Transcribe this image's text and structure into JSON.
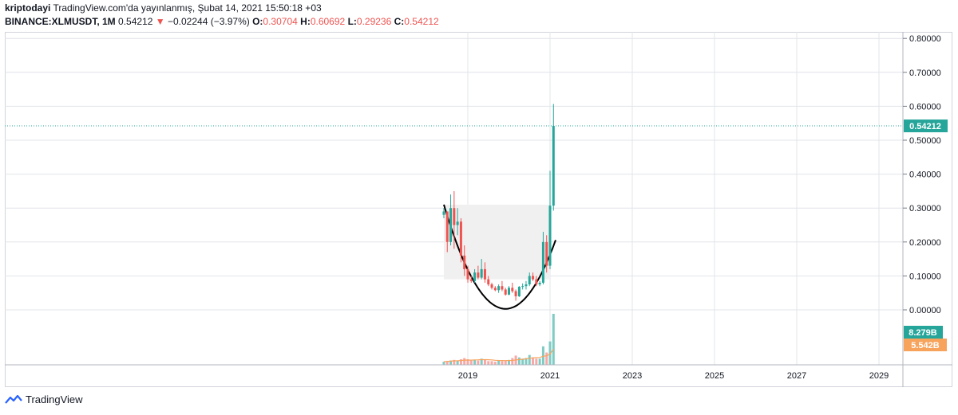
{
  "header": {
    "author": "kriptodayi",
    "published": "TradingView.com'da yayınlanmış, Şubat 14, 2021 15:50:18 +03",
    "symbol": "BINANCE:XLMUSDT, 1M",
    "last": "0.54212",
    "change": "−0.02244 (−3.97%)",
    "o_label": "O:",
    "o_value": "0.30704",
    "h_label": "H:",
    "h_value": "0.60692",
    "l_label": "L:",
    "l_value": "0.29236",
    "c_label": "C:",
    "c_value": "0.54212"
  },
  "price_axis": {
    "ticks": [
      "0.80000",
      "0.70000",
      "0.60000",
      "0.50000",
      "0.40000",
      "0.30000",
      "0.20000",
      "0.10000",
      "0.00000"
    ],
    "current_price_label": "0.54212",
    "volume_label": "8.279B",
    "volume_ma_label": "5.542B"
  },
  "time_axis": {
    "ticks": [
      "2019",
      "2021",
      "2023",
      "2025",
      "2027",
      "2029"
    ]
  },
  "footer": {
    "brand": "TradingView"
  },
  "colors": {
    "up": "#26a69a",
    "down": "#ef5350",
    "grid": "#e1e4e9",
    "last_price": "#26a69a",
    "volume_ma": "#f7a35c",
    "pattern_fill": "#f0f0f0"
  },
  "chart_data": {
    "type": "candlestick",
    "symbol": "BINANCE:XLMUSDT",
    "interval": "1M",
    "ylim": [
      0,
      0.8
    ],
    "xlim": [
      "2017-06",
      "2029-06"
    ],
    "last_price": 0.54212,
    "candles": [
      {
        "date": "2018-06",
        "o": 0.28,
        "h": 0.3,
        "l": 0.27,
        "c": 0.29
      },
      {
        "date": "2018-07",
        "o": 0.29,
        "h": 0.29,
        "l": 0.17,
        "c": 0.2
      },
      {
        "date": "2018-08",
        "o": 0.2,
        "h": 0.34,
        "l": 0.19,
        "c": 0.3
      },
      {
        "date": "2018-09",
        "o": 0.3,
        "h": 0.35,
        "l": 0.18,
        "c": 0.25
      },
      {
        "date": "2018-10",
        "o": 0.25,
        "h": 0.3,
        "l": 0.22,
        "c": 0.26
      },
      {
        "date": "2018-11",
        "o": 0.26,
        "h": 0.27,
        "l": 0.14,
        "c": 0.16
      },
      {
        "date": "2018-12",
        "o": 0.16,
        "h": 0.19,
        "l": 0.1,
        "c": 0.12
      },
      {
        "date": "2019-01",
        "o": 0.12,
        "h": 0.13,
        "l": 0.08,
        "c": 0.09
      },
      {
        "date": "2019-02",
        "o": 0.09,
        "h": 0.1,
        "l": 0.08,
        "c": 0.085
      },
      {
        "date": "2019-03",
        "o": 0.085,
        "h": 0.12,
        "l": 0.08,
        "c": 0.11
      },
      {
        "date": "2019-04",
        "o": 0.11,
        "h": 0.13,
        "l": 0.09,
        "c": 0.095
      },
      {
        "date": "2019-05",
        "o": 0.095,
        "h": 0.15,
        "l": 0.09,
        "c": 0.12
      },
      {
        "date": "2019-06",
        "o": 0.12,
        "h": 0.14,
        "l": 0.08,
        "c": 0.09
      },
      {
        "date": "2019-07",
        "o": 0.09,
        "h": 0.1,
        "l": 0.07,
        "c": 0.075
      },
      {
        "date": "2019-08",
        "o": 0.075,
        "h": 0.08,
        "l": 0.06,
        "c": 0.065
      },
      {
        "date": "2019-09",
        "o": 0.065,
        "h": 0.07,
        "l": 0.055,
        "c": 0.058
      },
      {
        "date": "2019-10",
        "o": 0.058,
        "h": 0.075,
        "l": 0.05,
        "c": 0.07
      },
      {
        "date": "2019-11",
        "o": 0.07,
        "h": 0.085,
        "l": 0.055,
        "c": 0.06
      },
      {
        "date": "2019-12",
        "o": 0.06,
        "h": 0.065,
        "l": 0.042,
        "c": 0.045
      },
      {
        "date": "2020-01",
        "o": 0.045,
        "h": 0.07,
        "l": 0.043,
        "c": 0.065
      },
      {
        "date": "2020-02",
        "o": 0.065,
        "h": 0.08,
        "l": 0.05,
        "c": 0.055
      },
      {
        "date": "2020-03",
        "o": 0.055,
        "h": 0.06,
        "l": 0.027,
        "c": 0.04
      },
      {
        "date": "2020-04",
        "o": 0.04,
        "h": 0.07,
        "l": 0.038,
        "c": 0.068
      },
      {
        "date": "2020-05",
        "o": 0.068,
        "h": 0.078,
        "l": 0.06,
        "c": 0.07
      },
      {
        "date": "2020-06",
        "o": 0.07,
        "h": 0.085,
        "l": 0.06,
        "c": 0.075
      },
      {
        "date": "2020-07",
        "o": 0.075,
        "h": 0.11,
        "l": 0.07,
        "c": 0.1
      },
      {
        "date": "2020-08",
        "o": 0.1,
        "h": 0.11,
        "l": 0.085,
        "c": 0.09
      },
      {
        "date": "2020-09",
        "o": 0.09,
        "h": 0.1,
        "l": 0.07,
        "c": 0.075
      },
      {
        "date": "2020-10",
        "o": 0.075,
        "h": 0.085,
        "l": 0.07,
        "c": 0.08
      },
      {
        "date": "2020-11",
        "o": 0.08,
        "h": 0.23,
        "l": 0.075,
        "c": 0.2
      },
      {
        "date": "2020-12",
        "o": 0.2,
        "h": 0.22,
        "l": 0.11,
        "c": 0.13
      },
      {
        "date": "2021-01",
        "o": 0.13,
        "h": 0.41,
        "l": 0.12,
        "c": 0.30704
      },
      {
        "date": "2021-02",
        "o": 0.30704,
        "h": 0.60692,
        "l": 0.29236,
        "c": 0.54212
      }
    ],
    "volume": [
      0.5,
      0.6,
      0.7,
      0.8,
      0.7,
      0.9,
      1.1,
      0.9,
      0.7,
      0.8,
      0.7,
      1.0,
      0.8,
      0.6,
      0.6,
      0.5,
      0.7,
      0.6,
      0.7,
      0.8,
      1.1,
      1.5,
      1.2,
      1.0,
      1.1,
      1.6,
      1.2,
      1.0,
      1.0,
      3.0,
      2.0,
      3.8,
      8.279
    ],
    "volume_unit": "B"
  }
}
